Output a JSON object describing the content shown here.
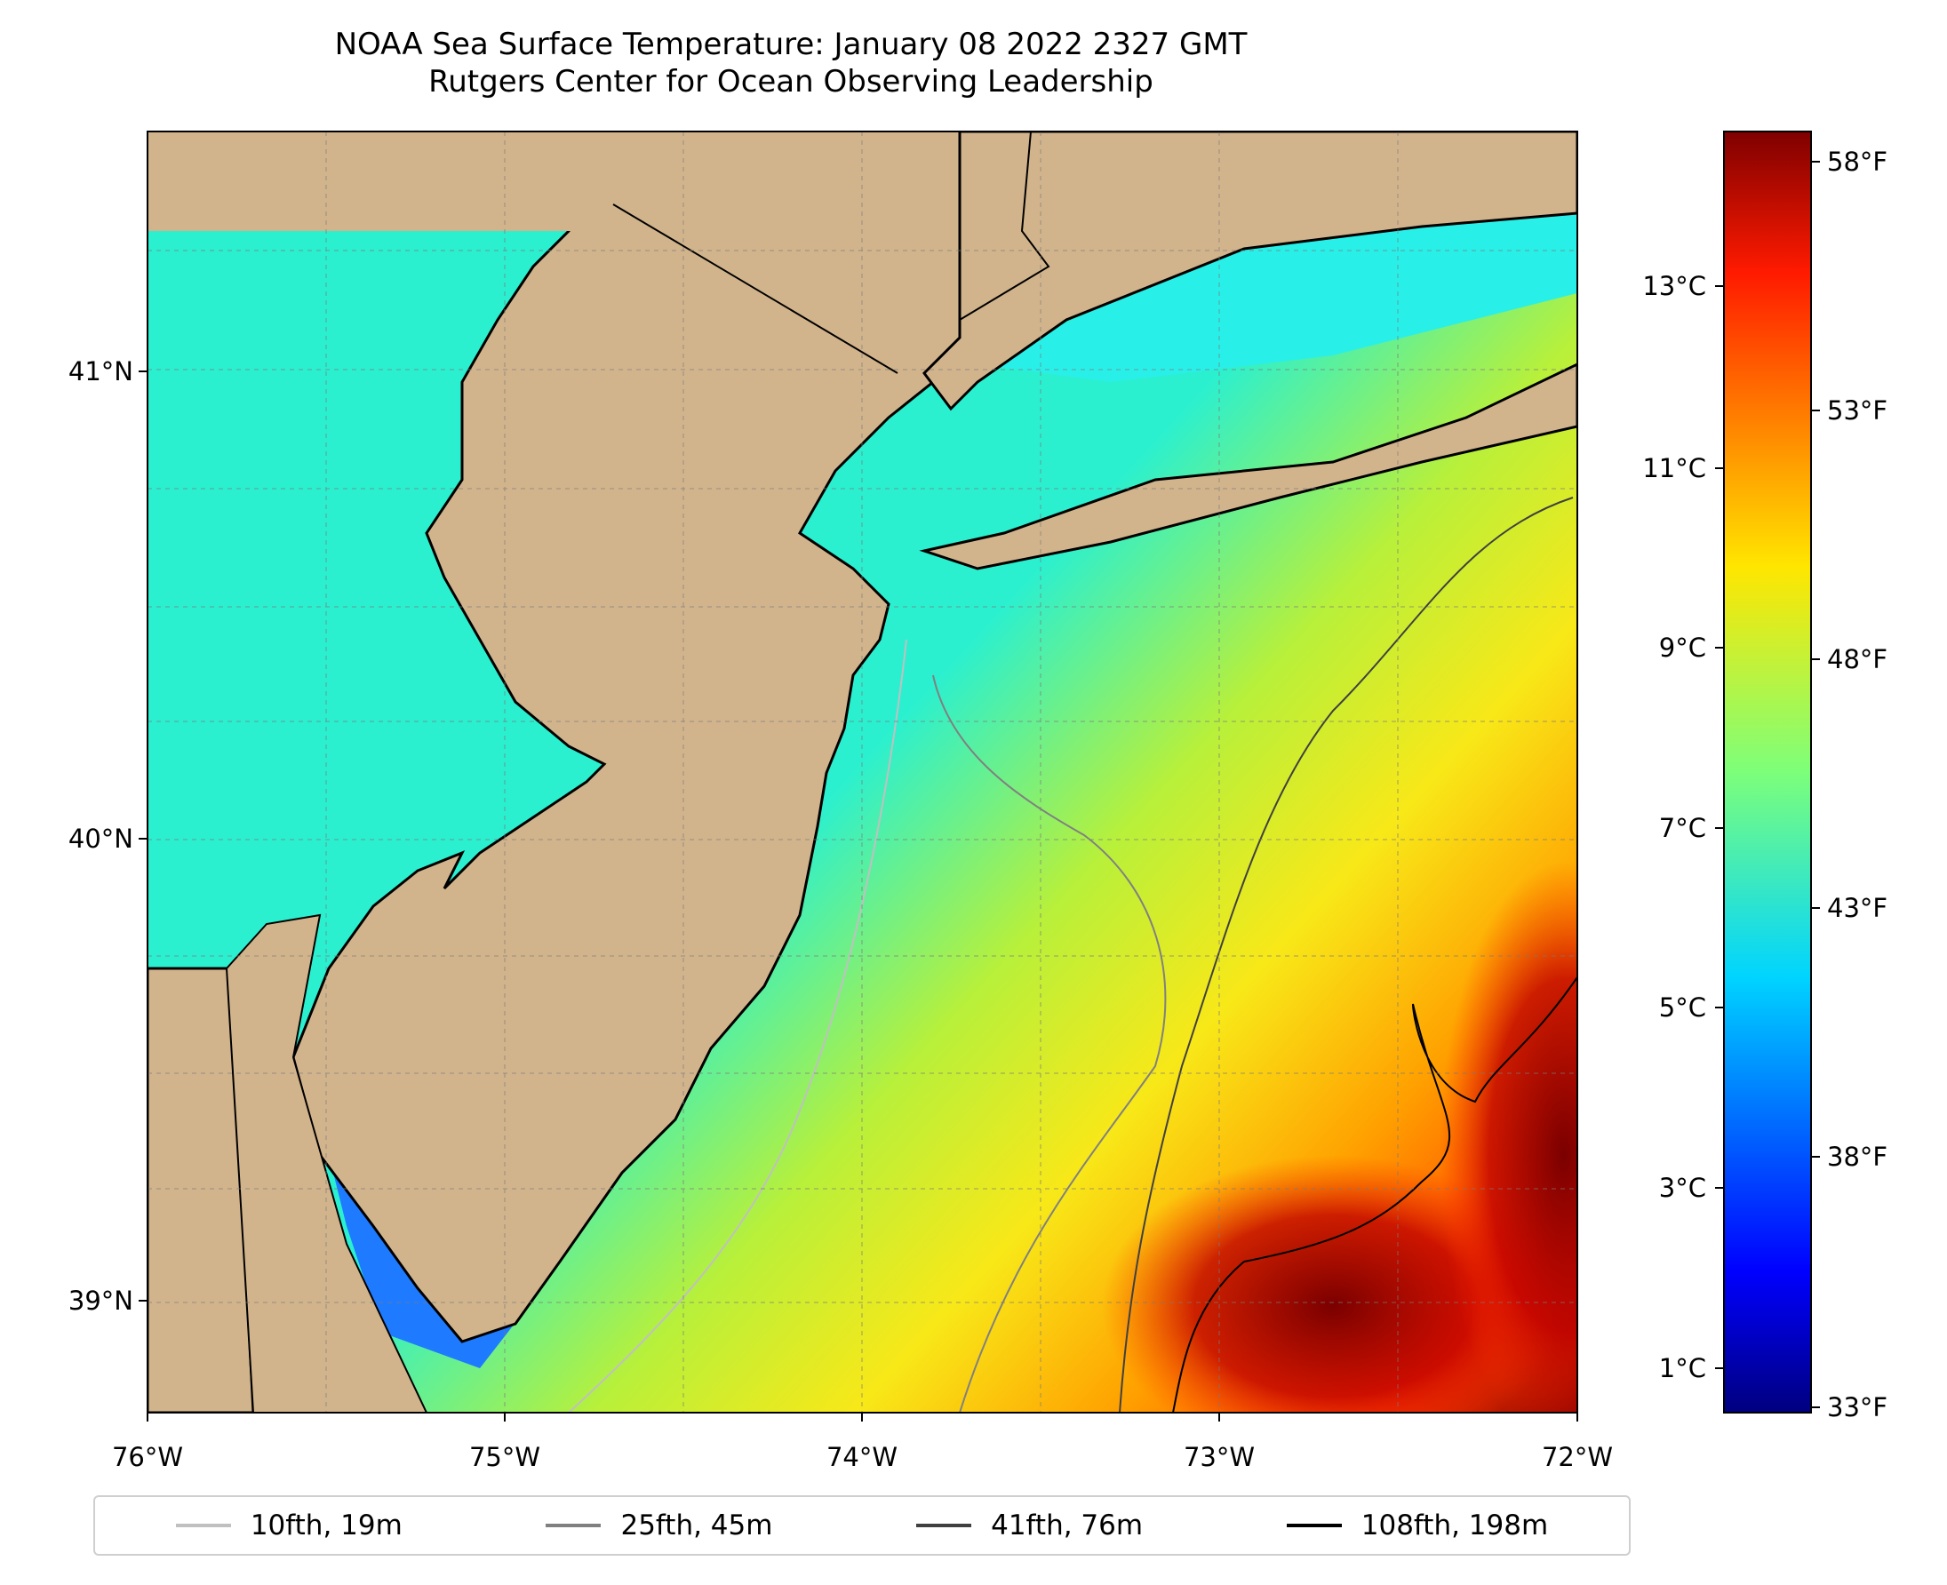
{
  "title": "NOAA Sea Surface Temperature: January 08 2022 2327 GMT",
  "subtitle": "Rutgers Center for Ocean Observing Leadership",
  "map": {
    "lon_range": [
      -76,
      -72
    ],
    "lat_range": [
      38.75,
      41.5
    ],
    "lon_ticks": [
      "76°W",
      "75°W",
      "74°W",
      "73°W",
      "72°W"
    ],
    "lat_ticks": [
      "41°N",
      "40°N",
      "39°N"
    ],
    "land_color": "#d2b48c",
    "gridlines": true
  },
  "colorbar": {
    "celsius_ticks": [
      "13°C",
      "11°C",
      "9°C",
      "7°C",
      "5°C",
      "3°C",
      "1°C"
    ],
    "fahrenheit_ticks": [
      "58°F",
      "53°F",
      "48°F",
      "43°F",
      "38°F",
      "33°F"
    ],
    "colormap": "jet",
    "range_f": [
      33,
      58
    ]
  },
  "legend": [
    {
      "label": "10fth, 19m",
      "color": "#c0c0c0"
    },
    {
      "label": "25fth, 45m",
      "color": "#808080"
    },
    {
      "label": "41fth, 76m",
      "color": "#404040"
    },
    {
      "label": "108fth, 198m",
      "color": "#000000"
    }
  ]
}
